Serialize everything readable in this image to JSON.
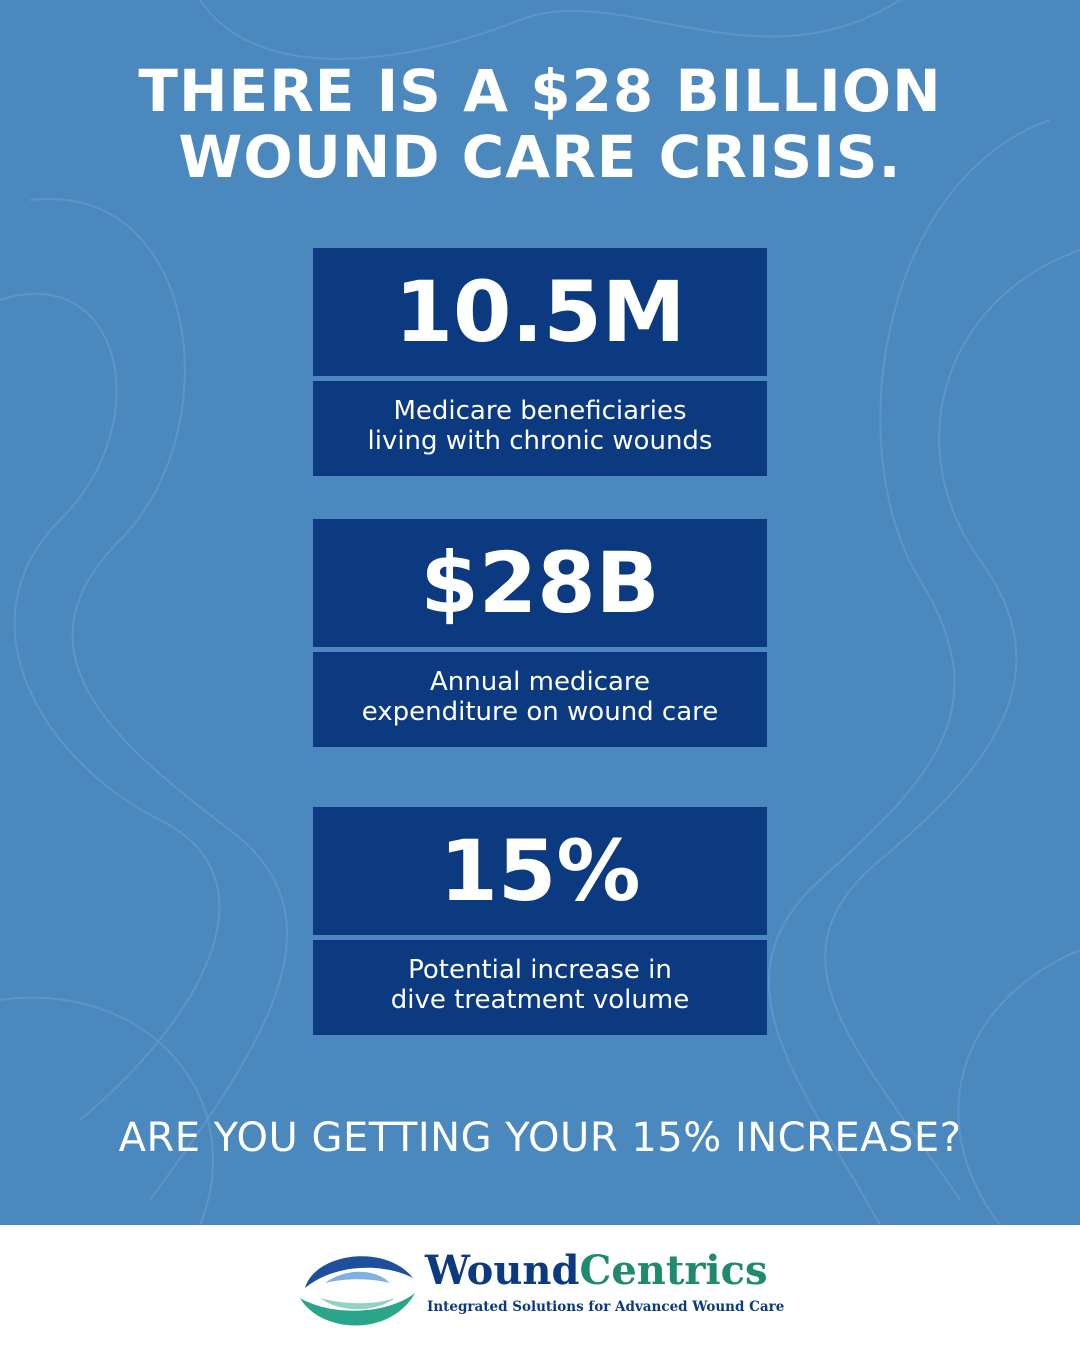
{
  "header": {
    "title": [
      "THERE IS A $28 BILLION",
      "WOUND CARE CRISIS."
    ]
  },
  "stats": [
    {
      "value": "10.5M",
      "caption": [
        "Medicare beneficiaries",
        "living with chronic wounds"
      ]
    },
    {
      "value": "$28B",
      "caption": [
        "Annual medicare",
        "expenditure on wound care"
      ]
    },
    {
      "value": "15%",
      "caption": [
        "Potential increase in",
        "dive treatment volume"
      ]
    }
  ],
  "question": "ARE YOU GETTING YOUR 15% INCREASE?",
  "footer": {
    "brand": [
      "Wound",
      "Centrics"
    ],
    "tagline": "Integrated Solutions for Advanced Wound Care"
  }
}
